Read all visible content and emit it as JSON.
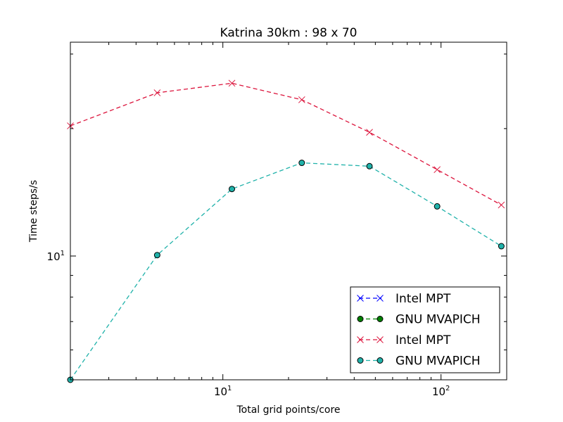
{
  "chart_data": {
    "type": "line",
    "title": "Katrina 30km : 98 x 70",
    "xlabel": "Total grid points/core",
    "ylabel": "Time steps/s",
    "xscale": "log",
    "yscale": "log",
    "xlim": [
      2.0,
      200.0
    ],
    "ylim": [
      5.1,
      32.0
    ],
    "x_ticks": [
      {
        "value": 10,
        "base": "10",
        "exp": "1"
      },
      {
        "value": 100,
        "base": "10",
        "exp": "2"
      }
    ],
    "y_ticks": [
      {
        "value": 10,
        "base": "10",
        "exp": "1"
      }
    ],
    "grid": false,
    "legend_position": "bottom-right",
    "series": [
      {
        "name": "Intel MPT",
        "color": "#0000ff",
        "marker": "x",
        "linestyle": "dashed",
        "x": [],
        "y": []
      },
      {
        "name": "GNU MVAPICH",
        "color": "#008000",
        "marker": "o",
        "linestyle": "dashed",
        "x": [],
        "y": []
      },
      {
        "name": "Intel MPT",
        "color": "#dc143c",
        "marker": "x",
        "linestyle": "dashed",
        "x": [
          2.0,
          5.0,
          11.0,
          23.0,
          47.0,
          96.0,
          189.0
        ],
        "y": [
          20.3,
          24.3,
          25.6,
          23.4,
          19.6,
          16.0,
          13.2
        ]
      },
      {
        "name": "GNU MVAPICH",
        "color": "#20b2aa",
        "marker": "o",
        "linestyle": "dashed",
        "x": [
          2.0,
          5.0,
          11.0,
          23.0,
          47.0,
          96.0,
          189.0
        ],
        "y": [
          5.1,
          10.05,
          14.4,
          16.6,
          16.3,
          13.1,
          10.55
        ]
      }
    ]
  }
}
